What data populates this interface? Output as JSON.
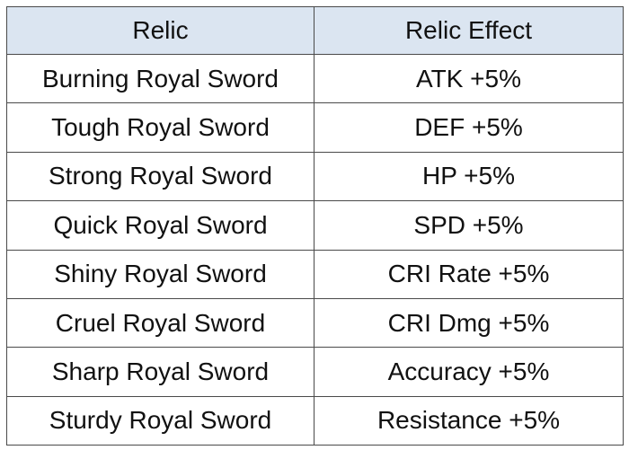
{
  "table": {
    "headers": [
      "Relic",
      "Relic Effect"
    ],
    "rows": [
      [
        "Burning Royal Sword",
        "ATK +5%"
      ],
      [
        "Tough Royal Sword",
        "DEF +5%"
      ],
      [
        "Strong Royal Sword",
        "HP +5%"
      ],
      [
        "Quick Royal Sword",
        "SPD +5%"
      ],
      [
        "Shiny Royal Sword",
        "CRI Rate +5%"
      ],
      [
        "Cruel Royal Sword",
        "CRI Dmg +5%"
      ],
      [
        "Sharp Royal Sword",
        "Accuracy +5%"
      ],
      [
        "Sturdy Royal Sword",
        "Resistance +5%"
      ]
    ]
  },
  "colors": {
    "header_bg": "#dbe5f1",
    "border": "#4a4a4a"
  }
}
